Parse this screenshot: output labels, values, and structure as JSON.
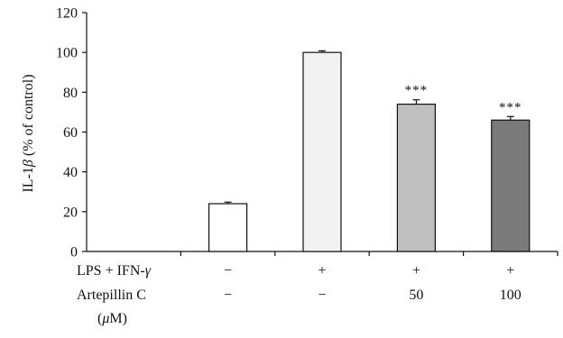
{
  "chart_data": {
    "type": "bar",
    "ylabel": "IL-1β (% of control)",
    "ylabel_parts": [
      "IL-1",
      "β",
      " (% of control)"
    ],
    "ylim": [
      0,
      120
    ],
    "yticks": [
      0,
      20,
      40,
      60,
      80,
      100,
      120
    ],
    "grid": false,
    "legend": "none",
    "bars": [
      {
        "value": 0,
        "error": 0,
        "color": "#ffffff",
        "significance": ""
      },
      {
        "value": 24,
        "error": 0.8,
        "color": "#ffffff",
        "significance": ""
      },
      {
        "value": 100,
        "error": 0.8,
        "color": "#f2f2f2",
        "significance": ""
      },
      {
        "value": 74,
        "error": 2.2,
        "color": "#c0c0c0",
        "significance": "***"
      },
      {
        "value": 66,
        "error": 1.8,
        "color": "#7a7a7a",
        "significance": "***"
      }
    ],
    "condition_rows": [
      {
        "label": "LPS + IFN-",
        "label_italic_suffix": "γ",
        "values": [
          "−",
          "+",
          "+",
          "+"
        ]
      },
      {
        "label": "Artepillin C",
        "values": [
          "−",
          "−",
          "50",
          "100"
        ]
      }
    ],
    "unit_row": {
      "open": "(",
      "italic": "μ",
      "rest": "M)"
    }
  }
}
